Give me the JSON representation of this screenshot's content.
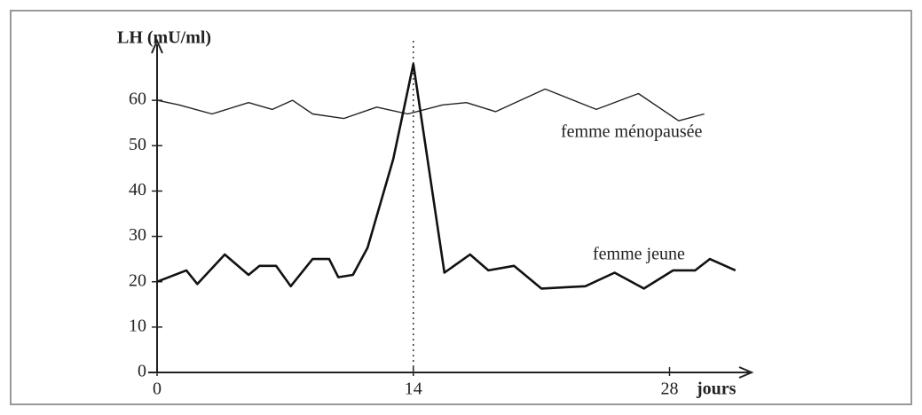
{
  "chart_data": {
    "type": "line",
    "y_label": "LH (mU/ml)",
    "x_label": "jours",
    "xlim": [
      0,
      32
    ],
    "xticks": [
      0,
      14,
      28
    ],
    "ylim": [
      0,
      70
    ],
    "yticks": [
      0,
      10,
      20,
      30,
      40,
      50,
      60
    ],
    "series": [
      {
        "name": "femme ménopausée",
        "color": "#222222",
        "width": 1.4,
        "x": [
          0,
          1.2,
          3,
          5,
          6.3,
          7.4,
          8.5,
          10.2,
          12,
          13.7,
          15.6,
          16.9,
          18.5,
          21.2,
          24,
          26.3,
          28.5,
          29.9
        ],
        "values": [
          60,
          59,
          57,
          59.5,
          58,
          60,
          57,
          56,
          58.5,
          57,
          59,
          59.5,
          57.5,
          62.5,
          58,
          61.5,
          55.5,
          57
        ]
      },
      {
        "name": "femme jeune",
        "color": "#111111",
        "width": 2.6,
        "x": [
          0,
          1.6,
          2.2,
          3.7,
          5,
          5.6,
          6.5,
          7.3,
          8.5,
          9.4,
          9.9,
          10.7,
          11.5,
          12.9,
          14,
          15.7,
          17.1,
          18.1,
          19.5,
          21,
          23.4,
          25,
          26.6,
          28.2,
          29.4,
          30.2,
          31.6
        ],
        "values": [
          20,
          22.5,
          19.5,
          26,
          21.5,
          23.5,
          23.5,
          19,
          25,
          25,
          21,
          21.5,
          27.5,
          47,
          68,
          22,
          26,
          22.5,
          23.5,
          18.5,
          19,
          22,
          18.5,
          22.5,
          22.5,
          25,
          22.5
        ]
      }
    ]
  }
}
